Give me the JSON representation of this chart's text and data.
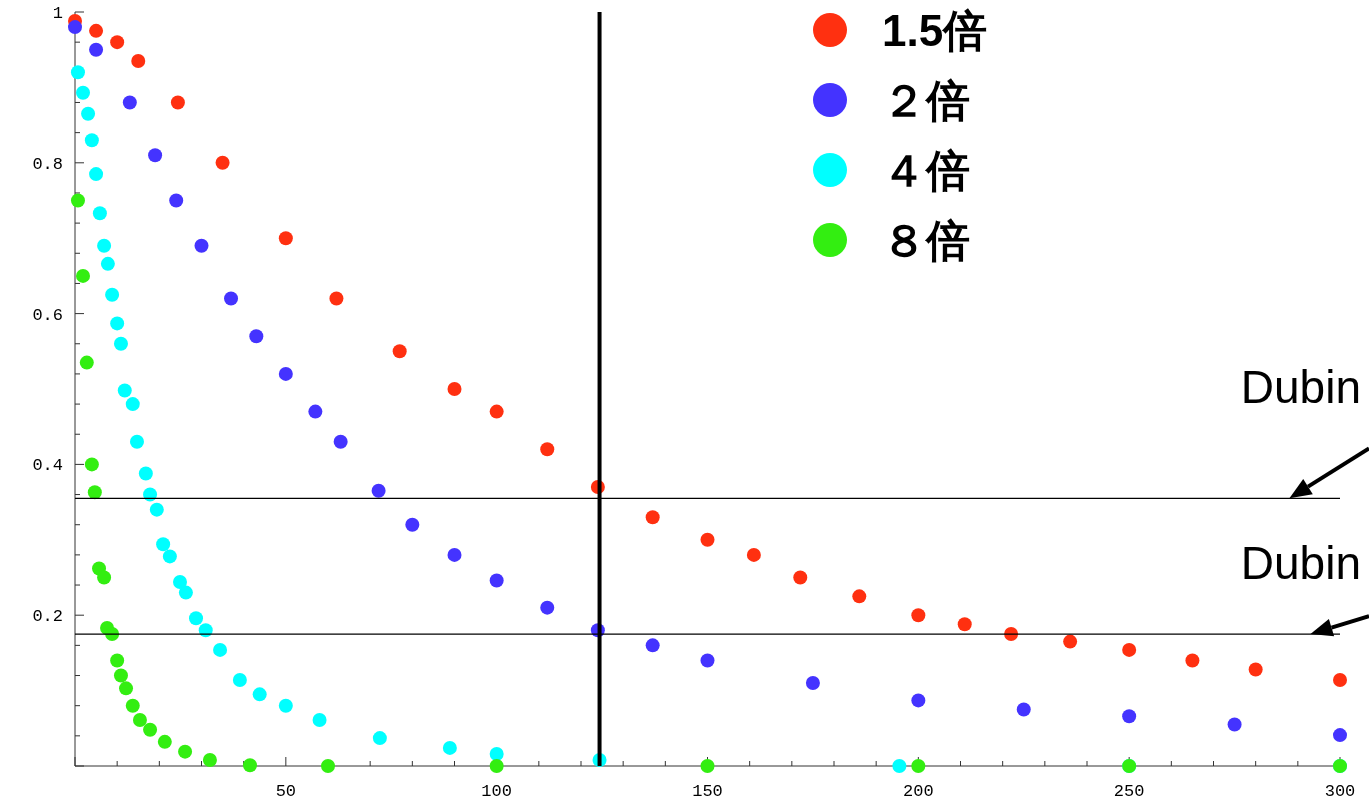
{
  "chart_data": {
    "type": "scatter",
    "marker": "circle",
    "legend": "top right",
    "grid": false,
    "xlim": [
      0,
      300
    ],
    "ylim": [
      0,
      1
    ],
    "xticks": [
      {
        "value": 0,
        "label": null
      },
      50,
      100,
      150,
      200,
      250,
      300
    ],
    "yticks": [
      {
        "value": 0,
        "label": null
      },
      0.2,
      0.4,
      0.6,
      0.8,
      1
    ],
    "ref_lines": [
      {
        "axis": "y",
        "value": 0.355,
        "color": "#000000"
      },
      {
        "axis": "y",
        "value": 0.175,
        "color": "#000000"
      },
      {
        "axis": "x",
        "value": 124.4,
        "color": "#000000"
      }
    ],
    "annotations": [
      {
        "text": "Dubin",
        "x": 288,
        "y": 0.355
      },
      {
        "text": "Dubin",
        "x": 293,
        "y": 0.175
      }
    ],
    "series": [
      {
        "name": "1.5倍",
        "color": "#ff3010",
        "x": [
          0,
          5,
          10,
          15,
          24.4,
          35,
          50,
          62,
          77,
          90,
          100,
          112,
          124,
          137,
          150,
          161,
          172,
          186,
          200,
          211,
          222,
          236,
          250,
          265,
          280,
          300
        ],
        "values": [
          0.988,
          0.975,
          0.96,
          0.935,
          0.88,
          0.8,
          0.7,
          0.62,
          0.55,
          0.5,
          0.47,
          0.42,
          0.37,
          0.33,
          0.3,
          0.28,
          0.25,
          0.225,
          0.2,
          0.188,
          0.175,
          0.165,
          0.154,
          0.14,
          0.128,
          0.114
        ]
      },
      {
        "name": "２倍",
        "color": "#4433ff",
        "x": [
          0,
          5,
          13,
          19,
          24,
          30,
          37,
          43,
          50,
          57,
          63,
          72,
          80,
          90,
          100,
          112,
          124,
          137,
          150,
          175,
          200,
          225,
          250,
          275,
          300
        ],
        "values": [
          0.98,
          0.95,
          0.88,
          0.81,
          0.75,
          0.69,
          0.62,
          0.57,
          0.52,
          0.47,
          0.43,
          0.365,
          0.32,
          0.28,
          0.246,
          0.21,
          0.18,
          0.16,
          0.14,
          0.11,
          0.087,
          0.075,
          0.066,
          0.055,
          0.041
        ]
      },
      {
        "name": "４倍",
        "color": "#00ffff",
        "x": [
          0.7,
          1.9,
          3.1,
          4,
          5,
          5.9,
          6.9,
          7.8,
          8.8,
          10,
          10.9,
          11.8,
          13.7,
          14.7,
          16.8,
          17.8,
          19.4,
          20.9,
          22.5,
          24.9,
          26.3,
          28.7,
          31,
          34.4,
          39.1,
          43.8,
          50,
          58,
          72.3,
          88.9,
          100,
          124.4,
          195.5,
          250,
          300
        ],
        "values": [
          0.92,
          0.893,
          0.865,
          0.83,
          0.785,
          0.733,
          0.69,
          0.666,
          0.625,
          0.587,
          0.56,
          0.498,
          0.48,
          0.43,
          0.388,
          0.36,
          0.34,
          0.294,
          0.278,
          0.244,
          0.23,
          0.196,
          0.18,
          0.154,
          0.114,
          0.095,
          0.08,
          0.061,
          0.037,
          0.024,
          0.016,
          0.008,
          0,
          0,
          0
        ]
      },
      {
        "name": "８倍",
        "color": "#33ee11",
        "x": [
          0.7,
          1.9,
          2.8,
          4,
          4.7,
          5.7,
          6.9,
          7.6,
          8.8,
          10,
          10.9,
          12.1,
          13.7,
          15.4,
          17.8,
          21.3,
          26.1,
          32,
          41.5,
          60,
          100,
          150,
          200,
          250,
          300
        ],
        "values": [
          0.75,
          0.65,
          0.535,
          0.4,
          0.363,
          0.262,
          0.25,
          0.183,
          0.175,
          0.14,
          0.12,
          0.103,
          0.08,
          0.061,
          0.048,
          0.032,
          0.019,
          0.008,
          0.001,
          0,
          0,
          0,
          0,
          0,
          0
        ]
      }
    ]
  }
}
